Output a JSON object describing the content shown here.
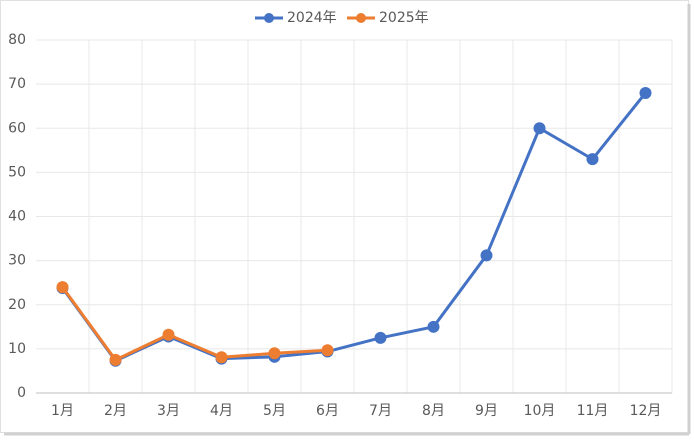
{
  "chart_data": {
    "type": "line",
    "categories": [
      "1月",
      "2月",
      "3月",
      "4月",
      "5月",
      "6月",
      "7月",
      "8月",
      "9月",
      "10月",
      "11月",
      "12月"
    ],
    "series": [
      {
        "name": "2024年",
        "color": "#4472c4",
        "values": [
          23.8,
          7.3,
          12.8,
          7.8,
          8.2,
          9.4,
          12.5,
          15,
          31.2,
          60,
          53,
          68
        ]
      },
      {
        "name": "2025年",
        "color": "#ed7d31",
        "values": [
          24,
          7.5,
          13.2,
          8.1,
          9,
          9.7,
          null,
          null,
          null,
          null,
          null,
          null
        ]
      }
    ],
    "ylim": [
      0,
      80
    ],
    "yticks": [
      0,
      10,
      20,
      30,
      40,
      50,
      60,
      70,
      80
    ],
    "grid": true,
    "legend": "top"
  }
}
